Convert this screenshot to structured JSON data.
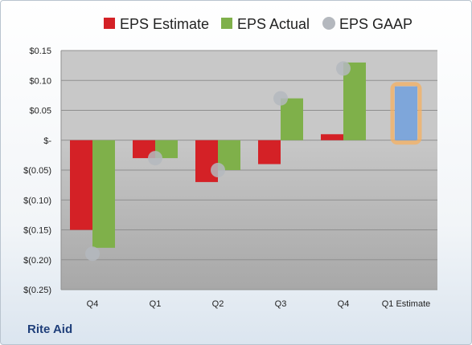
{
  "company": "Rite Aid",
  "chart_data": {
    "type": "bar",
    "categories": [
      "Q4",
      "Q1",
      "Q2",
      "Q3",
      "Q4",
      "Q1 Estimate"
    ],
    "series": [
      {
        "name": "EPS Estimate",
        "color": "#d42126",
        "values": [
          -0.15,
          -0.03,
          -0.07,
          -0.04,
          0.01,
          null
        ]
      },
      {
        "name": "EPS Actual",
        "color": "#7fb04a",
        "values": [
          -0.18,
          -0.03,
          -0.05,
          0.07,
          0.13,
          null
        ]
      },
      {
        "name": "EPS GAAP",
        "color": "#b4b8be",
        "marker": "circle",
        "values": [
          -0.19,
          -0.03,
          -0.05,
          0.07,
          0.12,
          null
        ]
      },
      {
        "name": "Q1 Estimate",
        "color": "#7ea6da",
        "highlight": "#f6b060",
        "values": [
          null,
          null,
          null,
          null,
          null,
          0.09
        ]
      }
    ],
    "ylim": [
      -0.25,
      0.15
    ],
    "yticks": [
      0.15,
      0.1,
      0.05,
      0,
      -0.05,
      -0.1,
      -0.15,
      -0.2,
      -0.25
    ],
    "ytick_labels": [
      "$0.15",
      "$0.10",
      "$0.05",
      "$-",
      "$(0.05)",
      "$(0.10)",
      "$(0.15)",
      "$(0.20)",
      "$(0.25)"
    ],
    "legend_position": "top",
    "grid": true
  }
}
